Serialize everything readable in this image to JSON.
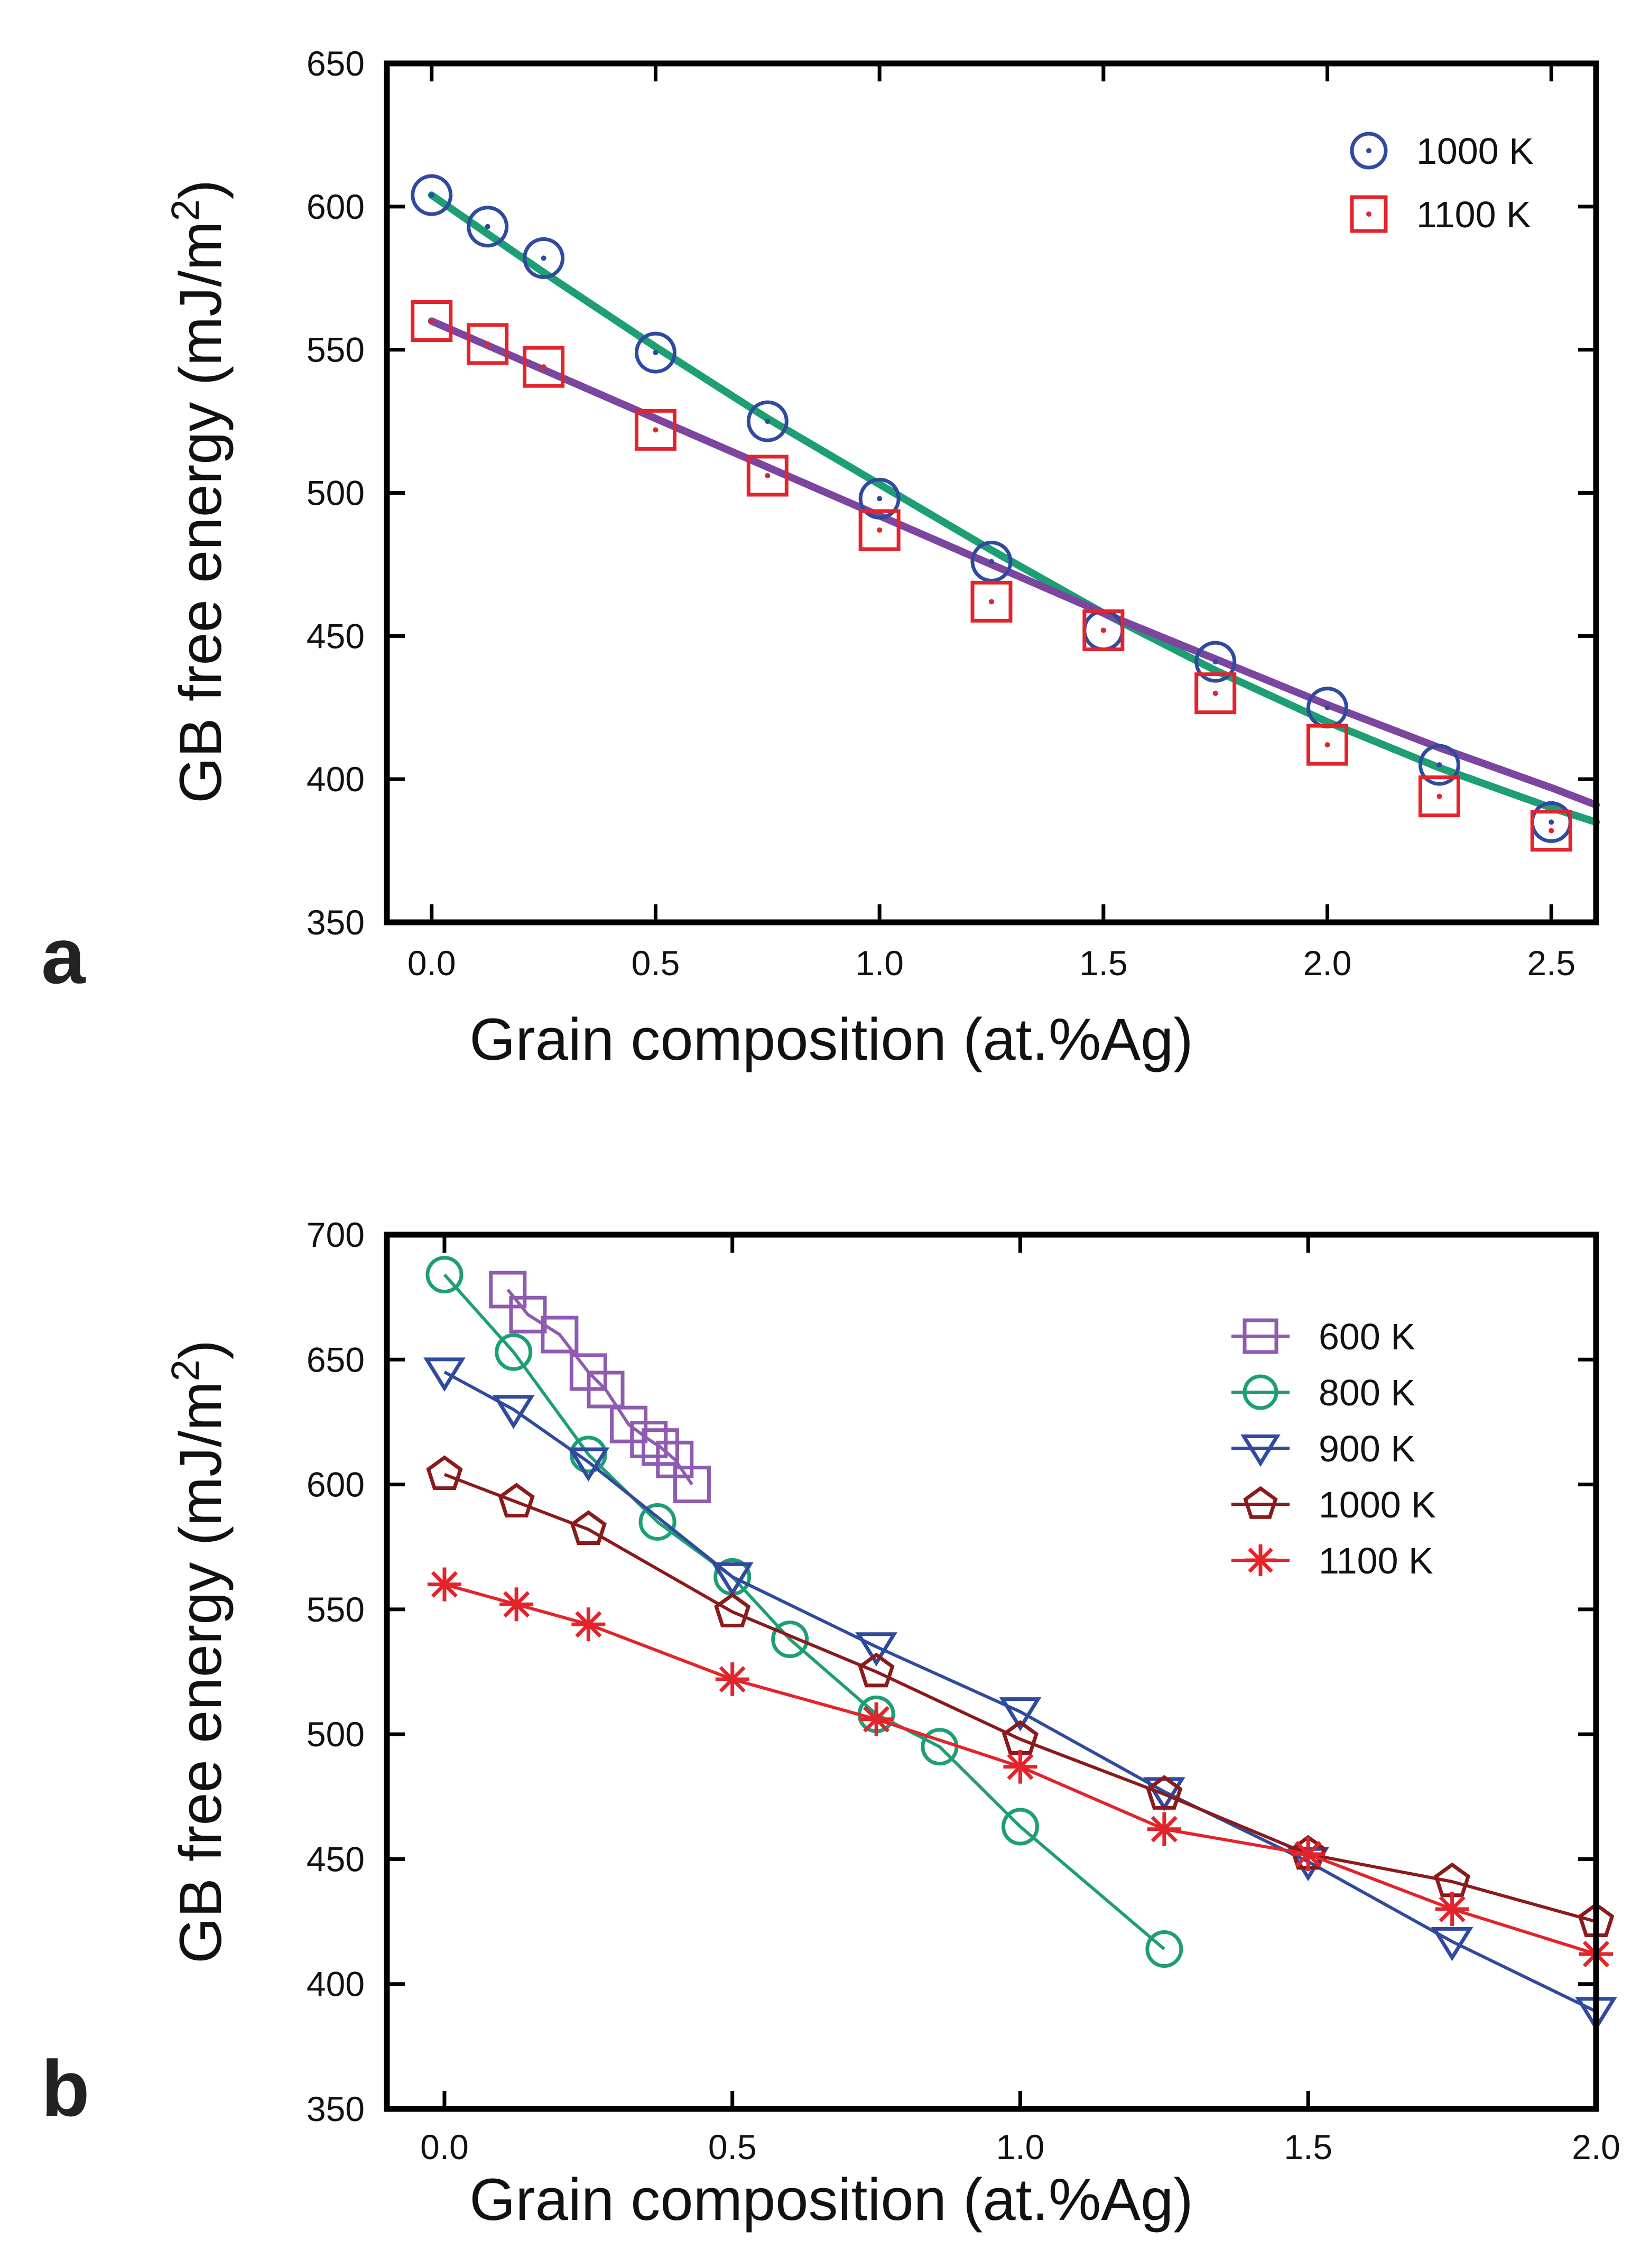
{
  "chart_data": [
    {
      "panel": "a",
      "type": "scatter",
      "xlabel": "Grain composition (at.%Ag)",
      "ylabel": "GB free energy (mJ/m",
      "ylabel_sup": "2",
      "ylabel_close": ")",
      "xlim": [
        -0.1,
        2.6
      ],
      "ylim": [
        350,
        650
      ],
      "xticks": [
        0,
        0.5,
        1,
        1.5,
        2,
        2.5
      ],
      "xtick_labels": [
        "0.0",
        "0.5",
        "1.0",
        "1.5",
        "2.0",
        "2.5"
      ],
      "yticks": [
        350,
        400,
        450,
        500,
        550,
        600,
        650
      ],
      "ytick_labels": [
        "350",
        "400",
        "450",
        "500",
        "550",
        "600",
        "650"
      ],
      "legend_position": "top-right",
      "series": [
        {
          "name": "1000 K",
          "marker": "circle",
          "color": "#2f4a9e",
          "x": [
            0,
            0.125,
            0.25,
            0.5,
            0.75,
            1.0,
            1.25,
            1.5,
            1.75,
            2.0,
            2.25,
            2.5
          ],
          "y": [
            604,
            593,
            582,
            549,
            525,
            498,
            476,
            452,
            441,
            425,
            405,
            385
          ]
        },
        {
          "name": "1100 K",
          "marker": "square",
          "color": "#e3242b",
          "x": [
            0,
            0.125,
            0.25,
            0.5,
            0.75,
            1.0,
            1.25,
            1.5,
            1.75,
            2.0,
            2.25,
            2.5
          ],
          "y": [
            560,
            552,
            544,
            522,
            506,
            487,
            462,
            452,
            430,
            412,
            394,
            382
          ]
        }
      ],
      "fits": [
        {
          "name": "1000 K fit",
          "color": "#1e9e74",
          "x": [
            0,
            0.25,
            0.5,
            0.75,
            1.0,
            1.25,
            1.5,
            1.75,
            2.0,
            2.25,
            2.5,
            2.6
          ],
          "y": [
            604,
            577,
            551,
            526,
            503,
            480,
            458,
            438,
            420,
            404,
            390,
            385
          ]
        },
        {
          "name": "1100 K fit",
          "color": "#7c45a0",
          "x": [
            0,
            0.25,
            0.5,
            0.75,
            1.0,
            1.25,
            1.5,
            1.75,
            2.0,
            2.25,
            2.5,
            2.6
          ],
          "y": [
            560,
            543,
            526,
            509,
            492,
            475,
            458,
            442,
            426,
            411,
            397,
            391
          ]
        }
      ]
    },
    {
      "panel": "b",
      "type": "line",
      "xlabel": "Grain composition (at.%Ag)",
      "ylabel": "GB free energy (mJ/m",
      "ylabel_sup": "2",
      "ylabel_close": ")",
      "xlim": [
        -0.1,
        2.0
      ],
      "ylim": [
        350,
        700
      ],
      "xticks": [
        0,
        0.5,
        1,
        1.5,
        2
      ],
      "xtick_labels": [
        "0.0",
        "0.5",
        "1.0",
        "1.5",
        "2.0"
      ],
      "yticks": [
        350,
        400,
        450,
        500,
        550,
        600,
        650,
        700
      ],
      "ytick_labels": [
        "350",
        "400",
        "450",
        "500",
        "550",
        "600",
        "650",
        "700"
      ],
      "legend_position": "top-right",
      "series": [
        {
          "name": "600 K",
          "marker": "square",
          "color": "#8e5bb0",
          "x": [
            0.11,
            0.145,
            0.2,
            0.25,
            0.28,
            0.32,
            0.355,
            0.375,
            0.4,
            0.43
          ],
          "y": [
            678,
            668,
            660,
            645,
            638,
            624,
            618,
            615,
            610,
            600
          ]
        },
        {
          "name": "800 K",
          "marker": "circle",
          "color": "#1e9e74",
          "x": [
            0,
            0.12,
            0.25,
            0.37,
            0.5,
            0.6,
            0.75,
            0.86,
            1.0,
            1.25
          ],
          "y": [
            684,
            653,
            612,
            585,
            563,
            538,
            508,
            495,
            463,
            414
          ]
        },
        {
          "name": "900 K",
          "marker": "triangle-down",
          "color": "#2f4a9e",
          "x": [
            0,
            0.12,
            0.25,
            0.5,
            0.75,
            1.0,
            1.25,
            1.5,
            1.75,
            2.0
          ],
          "y": [
            645,
            630,
            609,
            563,
            535,
            509,
            477,
            449,
            417,
            389
          ]
        },
        {
          "name": "1000 K",
          "marker": "pentagon",
          "color": "#8b1a1a",
          "x": [
            0,
            0.125,
            0.25,
            0.5,
            0.75,
            1.0,
            1.25,
            1.5,
            1.75,
            2.0
          ],
          "y": [
            604,
            593,
            582,
            549,
            525,
            498,
            476,
            452,
            441,
            425
          ]
        },
        {
          "name": "1100 K",
          "marker": "asterisk",
          "color": "#e3242b",
          "x": [
            0,
            0.125,
            0.25,
            0.5,
            0.75,
            1.0,
            1.25,
            1.5,
            1.75,
            2.0
          ],
          "y": [
            560,
            552,
            544,
            522,
            506,
            487,
            462,
            452,
            430,
            412
          ]
        }
      ]
    }
  ]
}
